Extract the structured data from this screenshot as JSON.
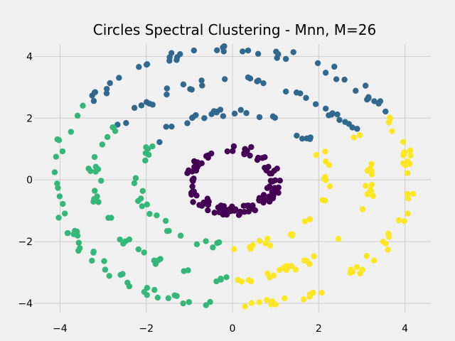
{
  "chart_data": {
    "type": "scatter",
    "title": "Circles Spectral Clustering - Mnn, M=26",
    "xlabel": "",
    "ylabel": "",
    "xlim": [
      -4.6,
      4.6
    ],
    "ylim": [
      -4.3,
      4.4
    ],
    "xticks": [
      -4,
      -2,
      0,
      2,
      4
    ],
    "yticks": [
      -4,
      -2,
      0,
      2,
      4
    ],
    "grid": true,
    "legend": "none",
    "clusters": [
      {
        "color": "#440154",
        "description": "inner ring",
        "radius": 1.0,
        "angle_range_deg": [
          0,
          360
        ],
        "approx_points": 120
      },
      {
        "color": "#31688e",
        "description": "upper arcs of middle and outer rings",
        "rings": [
          {
            "radius": 2.2,
            "angle_range_deg": [
              25,
              148
            ]
          },
          {
            "radius": 3.2,
            "angle_range_deg": [
              28,
              148
            ]
          },
          {
            "radius": 4.2,
            "angle_range_deg": [
              30,
              145
            ]
          }
        ]
      },
      {
        "color": "#35b779",
        "description": "lower-left arcs of middle and outer rings",
        "rings": [
          {
            "radius": 2.2,
            "angle_range_deg": [
              148,
              268
            ]
          },
          {
            "radius": 3.2,
            "angle_range_deg": [
              148,
              268
            ]
          },
          {
            "radius": 4.1,
            "angle_range_deg": [
              145,
              265
            ]
          }
        ]
      },
      {
        "color": "#fde725",
        "description": "lower-right arcs of middle and outer rings",
        "rings": [
          {
            "radius": 2.2,
            "angle_range_deg": [
              268,
              385
            ]
          },
          {
            "radius": 3.2,
            "angle_range_deg": [
              268,
              388
            ]
          },
          {
            "radius": 4.1,
            "angle_range_deg": [
              265,
              390
            ]
          }
        ]
      }
    ]
  }
}
